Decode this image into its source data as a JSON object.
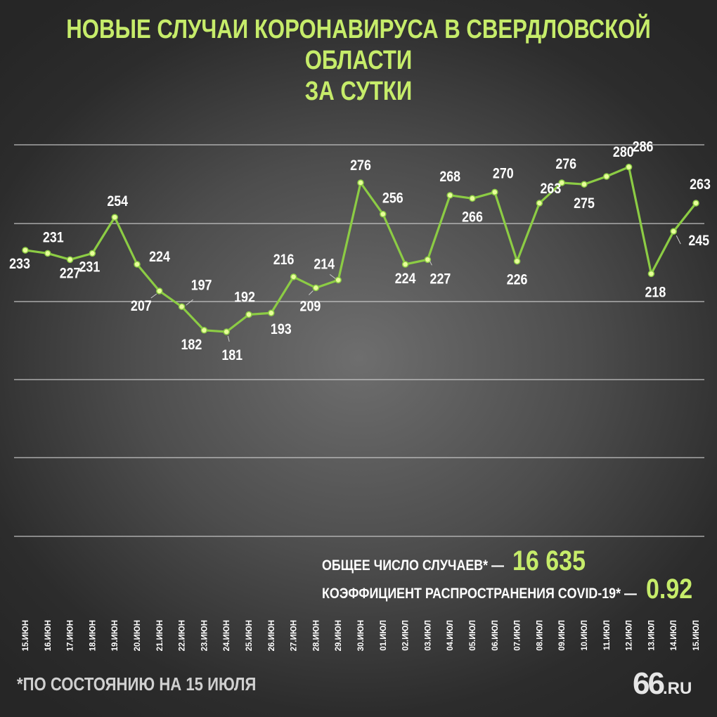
{
  "title": {
    "line1": "НОВЫЕ СЛУЧАИ КОРОНАВИРУСА В СВЕРДЛОВСКОЙ ОБЛАСТИ",
    "line2": "ЗА СУТКИ"
  },
  "summary": {
    "total_label": "ОБЩЕЕ ЧИСЛО СЛУЧАЕВ* —",
    "total_value": "16 635",
    "coef_label": "КОЭФФИЦИЕНТ РАСПРОСТРАНЕНИЯ COVID-19* —",
    "coef_value": "0.92"
  },
  "footnote": "*ПО СОСТОЯНИЮ НА 15 ИЮЛЯ",
  "logo": {
    "main": "66",
    "suffix": ".RU"
  },
  "colors": {
    "accent": "#c6ec6a",
    "line": "#8ccc44",
    "grid": "#d8d8d8",
    "text": "#ffffff"
  },
  "chart_data": {
    "type": "line",
    "title": "НОВЫЕ СЛУЧАИ КОРОНАВИРУСА В СВЕРДЛОВСКОЙ ОБЛАСТИ ЗА СУТКИ",
    "xlabel": "",
    "ylabel": "",
    "grid": "horizontal",
    "categories": [
      "15.ИЮН",
      "16.ИЮН",
      "17.ИЮН",
      "18.ИЮН",
      "19.ИЮН",
      "20.ИЮН",
      "21.ИЮН",
      "22.ИЮН",
      "23.ИЮН",
      "24.ИЮН",
      "25.ИЮН",
      "26.ИЮН",
      "27.ИЮН",
      "28.ИЮН",
      "29.ИЮН",
      "30.ИЮН",
      "01.ИЮЛ",
      "02.ИЮЛ",
      "03.ИЮЛ",
      "04.ИЮЛ",
      "05.ИЮЛ",
      "06.ИЮЛ",
      "07.ИЮЛ",
      "08.ИЮЛ",
      "09.ИЮЛ",
      "10.ИЮЛ",
      "11.ИЮЛ",
      "12.ИЮЛ",
      "13.ИЮЛ",
      "14.ИЮЛ",
      "15.ИЮЛ"
    ],
    "values": [
      233,
      231,
      227,
      231,
      254,
      224,
      207,
      197,
      182,
      181,
      192,
      193,
      216,
      209,
      214,
      276,
      256,
      224,
      227,
      268,
      266,
      270,
      226,
      263,
      276,
      275,
      280,
      286,
      218,
      245,
      263
    ]
  }
}
